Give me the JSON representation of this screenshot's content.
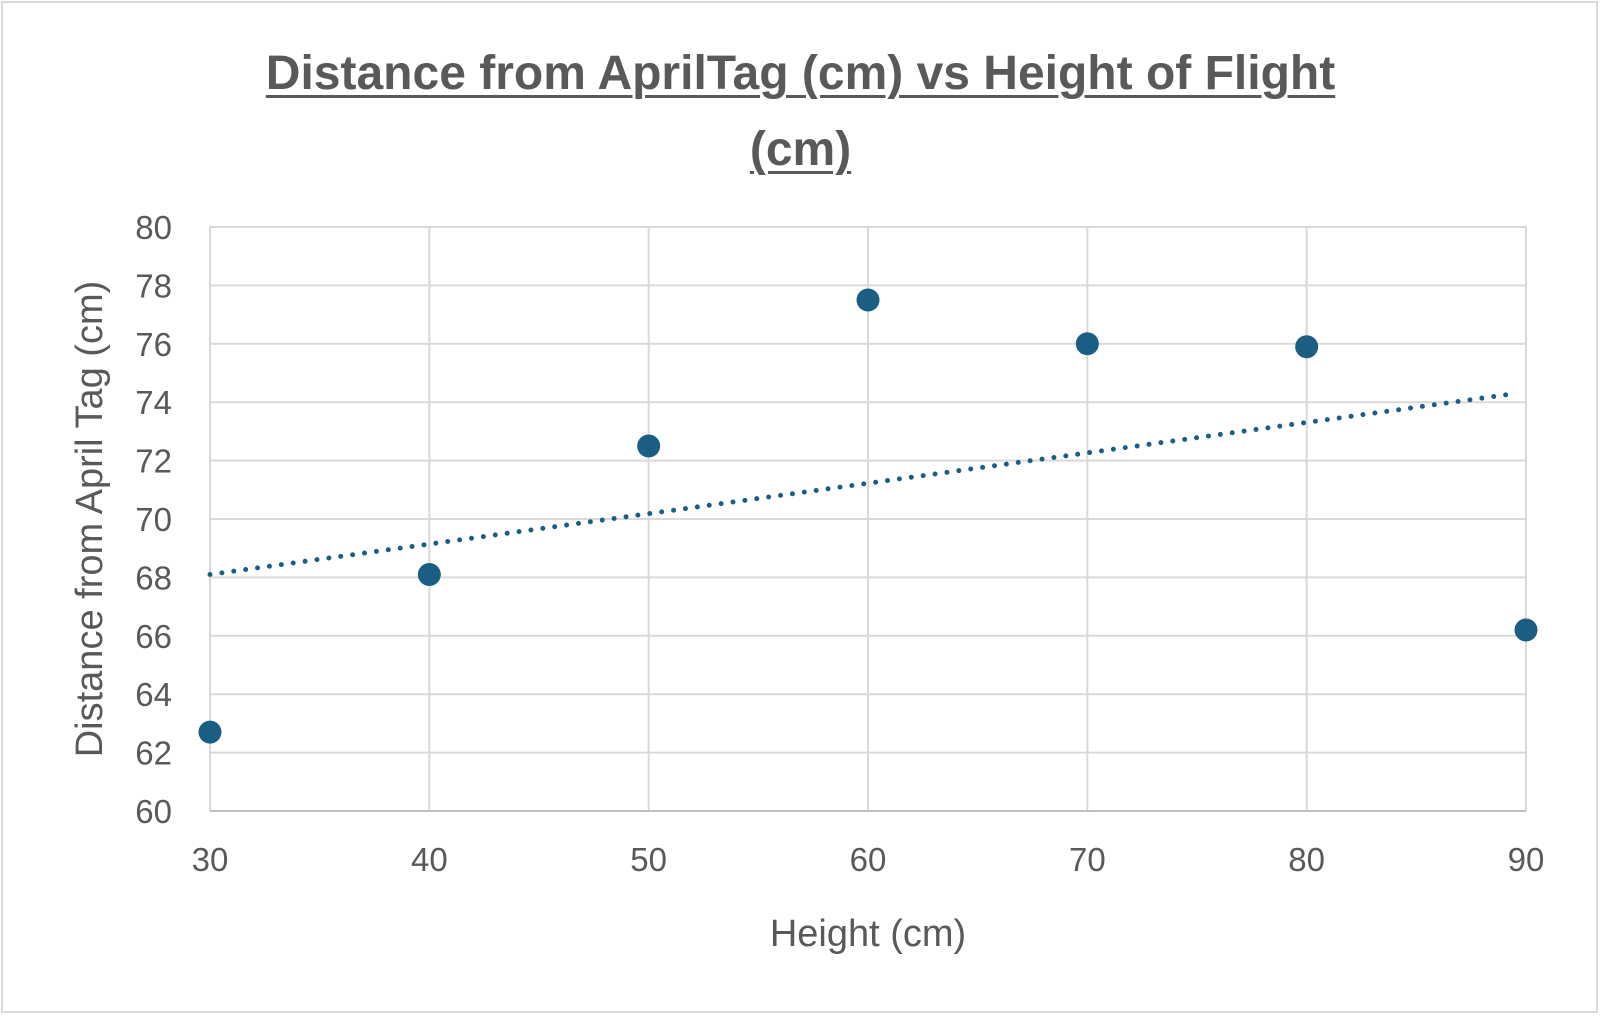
{
  "chart_data": {
    "type": "scatter",
    "title": "Distance from AprilTag (cm) vs Height of Flight (cm)",
    "xlabel": "Height (cm)",
    "ylabel": "Distance from April Tag (cm)",
    "xlim": [
      30,
      90
    ],
    "ylim": [
      60,
      80
    ],
    "xticks": [
      30,
      40,
      50,
      60,
      70,
      80,
      90
    ],
    "yticks": [
      60,
      62,
      64,
      66,
      68,
      70,
      72,
      74,
      76,
      78,
      80
    ],
    "grid": true,
    "legend": "none",
    "series": [
      {
        "x": [
          30,
          40,
          50,
          60,
          70,
          80,
          90
        ],
        "y": [
          62.7,
          68.1,
          72.5,
          77.5,
          76.0,
          75.9,
          66.2
        ],
        "color": "#1b5e83"
      }
    ],
    "trendline": {
      "type": "linear",
      "style": "dotted",
      "color": "#1b5e83",
      "x": [
        30,
        90
      ],
      "y": [
        68.1,
        74.4
      ]
    }
  }
}
